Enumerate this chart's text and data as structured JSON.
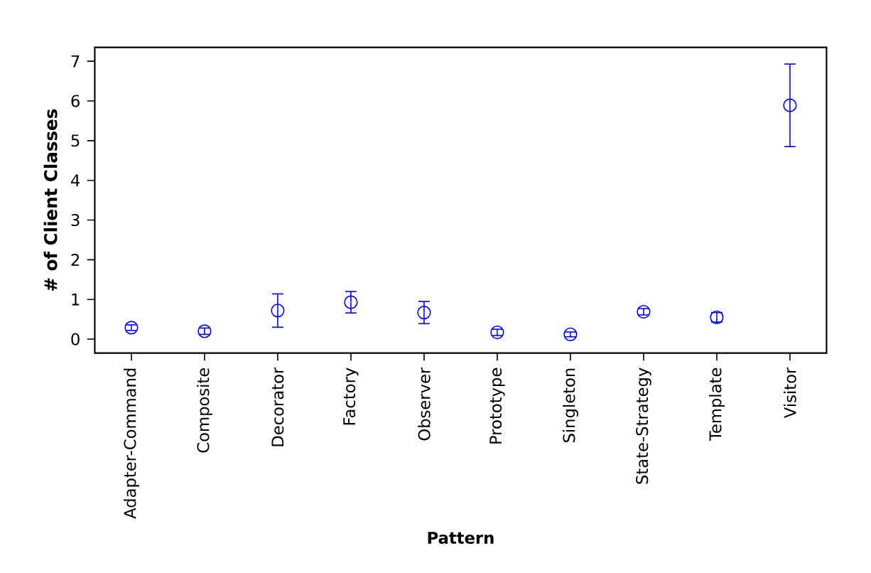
{
  "chart_data": {
    "type": "scatter",
    "xlabel": "Pattern",
    "ylabel": "# of Client Classes",
    "categories": [
      "Adapter-Command",
      "Composite",
      "Decorator",
      "Factory",
      "Observer",
      "Prototype",
      "Singleton",
      "State-Strategy",
      "Template",
      "Visitor"
    ],
    "values": [
      0.29,
      0.2,
      0.72,
      0.93,
      0.67,
      0.17,
      0.12,
      0.69,
      0.55,
      5.89
    ],
    "errors": [
      0.07,
      0.08,
      0.42,
      0.27,
      0.28,
      0.08,
      0.06,
      0.08,
      0.12,
      1.04
    ],
    "color": "#0000ff",
    "marker": "circle",
    "ylim": [
      -0.35,
      7.35
    ],
    "yticks": [
      0,
      1,
      2,
      3,
      4,
      5,
      6,
      7
    ]
  }
}
